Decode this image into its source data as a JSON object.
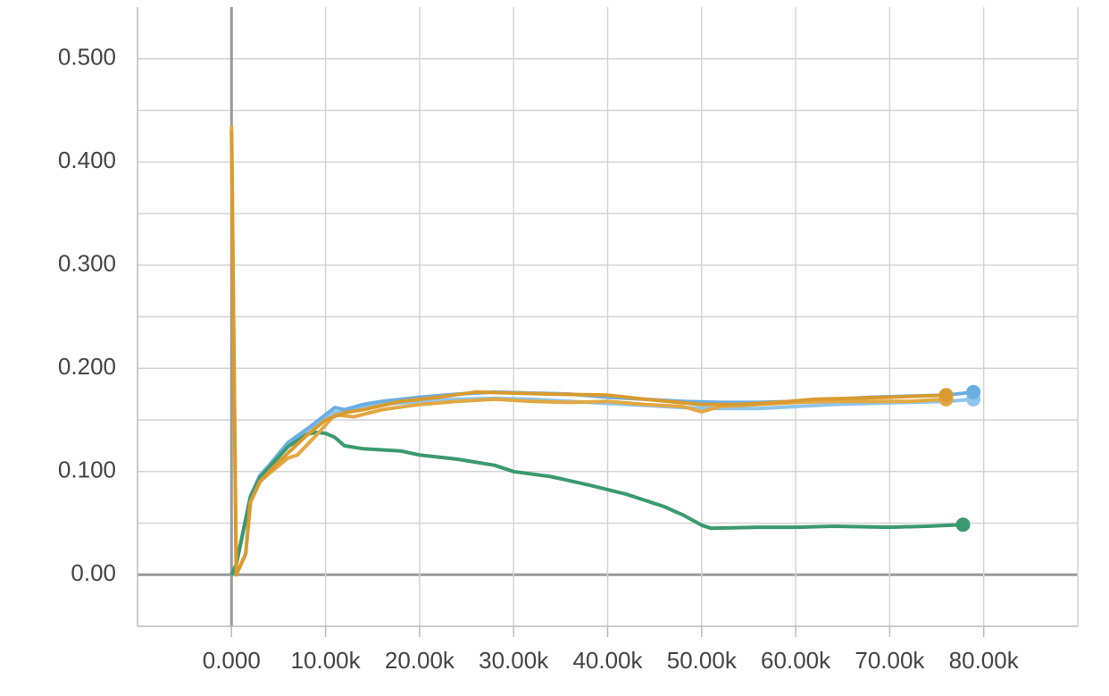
{
  "chart_data": {
    "type": "line",
    "xlim": [
      -10000,
      90000
    ],
    "ylim": [
      -0.05,
      0.55
    ],
    "xticks": [
      {
        "value": 0,
        "label": "0.000"
      },
      {
        "value": 10000,
        "label": "10.00k"
      },
      {
        "value": 20000,
        "label": "20.00k"
      },
      {
        "value": 30000,
        "label": "30.00k"
      },
      {
        "value": 40000,
        "label": "40.00k"
      },
      {
        "value": 50000,
        "label": "50.00k"
      },
      {
        "value": 60000,
        "label": "60.00k"
      },
      {
        "value": 70000,
        "label": "70.00k"
      },
      {
        "value": 80000,
        "label": "80.00k"
      }
    ],
    "yticks": [
      {
        "value": 0,
        "label": "0.00"
      },
      {
        "value": 0.1,
        "label": "0.100"
      },
      {
        "value": 0.2,
        "label": "0.200"
      },
      {
        "value": 0.3,
        "label": "0.300"
      },
      {
        "value": 0.4,
        "label": "0.400"
      },
      {
        "value": 0.5,
        "label": "0.500"
      }
    ],
    "y_minor_grid": [
      0.05,
      0.15,
      0.25,
      0.35,
      0.45
    ],
    "grid": true,
    "series": [
      {
        "color": "#8ec5ec",
        "x": [
          0,
          500,
          2000,
          3000,
          4000,
          6000,
          8000,
          10000,
          11000,
          12000,
          14000,
          16000,
          20000,
          24000,
          28000,
          32000,
          36000,
          40000,
          44000,
          48000,
          52000,
          56000,
          60000,
          64000,
          68000,
          72000,
          76000,
          78900
        ],
        "values": [
          0,
          0.01,
          0.074,
          0.093,
          0.104,
          0.125,
          0.138,
          0.152,
          0.158,
          0.157,
          0.162,
          0.165,
          0.168,
          0.17,
          0.171,
          0.17,
          0.168,
          0.166,
          0.164,
          0.162,
          0.161,
          0.161,
          0.163,
          0.165,
          0.166,
          0.167,
          0.168,
          0.17
        ]
      },
      {
        "color": "#6aaee3",
        "x": [
          0,
          500,
          2000,
          3000,
          4000,
          6000,
          8000,
          10000,
          11000,
          12000,
          14000,
          16000,
          20000,
          24000,
          28000,
          32000,
          36000,
          40000,
          44000,
          48000,
          52000,
          56000,
          60000,
          64000,
          68000,
          72000,
          76000,
          78900
        ],
        "values": [
          0,
          0.01,
          0.076,
          0.096,
          0.106,
          0.128,
          0.141,
          0.155,
          0.162,
          0.16,
          0.165,
          0.168,
          0.172,
          0.175,
          0.177,
          0.176,
          0.175,
          0.172,
          0.17,
          0.168,
          0.167,
          0.167,
          0.168,
          0.17,
          0.172,
          0.173,
          0.174,
          0.177
        ]
      },
      {
        "color": "#3a9a6e",
        "x": [
          0,
          500,
          2000,
          3000,
          4000,
          6000,
          8000,
          9000,
          10000,
          11000,
          12000,
          14000,
          18000,
          20000,
          24000,
          28000,
          30000,
          34000,
          38000,
          42000,
          46000,
          48000,
          50000,
          51000,
          56000,
          60000,
          64000,
          70000,
          74000,
          77800
        ],
        "values": [
          0,
          0.01,
          0.075,
          0.094,
          0.104,
          0.124,
          0.136,
          0.138,
          0.137,
          0.133,
          0.125,
          0.122,
          0.12,
          0.116,
          0.112,
          0.106,
          0.1,
          0.095,
          0.087,
          0.078,
          0.066,
          0.058,
          0.048,
          0.045,
          0.046,
          0.046,
          0.047,
          0.046,
          0.047,
          0.0485
        ]
      },
      {
        "color": "#e2a843",
        "x": [
          0,
          500,
          1500,
          2000,
          3000,
          4000,
          6000,
          7000,
          9000,
          11000,
          13000,
          16000,
          20000,
          24000,
          28000,
          32000,
          36000,
          40000,
          44000,
          48000,
          50000,
          52000,
          56000,
          60000,
          64000,
          68000,
          72000,
          76000
        ],
        "values": [
          0.435,
          0,
          0.02,
          0.07,
          0.09,
          0.098,
          0.113,
          0.116,
          0.135,
          0.155,
          0.153,
          0.16,
          0.165,
          0.168,
          0.17,
          0.168,
          0.167,
          0.168,
          0.165,
          0.163,
          0.158,
          0.163,
          0.165,
          0.167,
          0.168,
          0.168,
          0.168,
          0.17
        ]
      },
      {
        "color": "#d99b30",
        "x": [
          0,
          500,
          1500,
          2000,
          3000,
          4000,
          6000,
          8000,
          10000,
          12000,
          14000,
          18000,
          22000,
          26000,
          30000,
          34000,
          40000,
          44000,
          50000,
          54000,
          58000,
          62000,
          66000,
          70000,
          76000
        ],
        "values": [
          0.43,
          0,
          0.02,
          0.07,
          0.09,
          0.1,
          0.118,
          0.135,
          0.15,
          0.157,
          0.16,
          0.168,
          0.172,
          0.177,
          0.176,
          0.175,
          0.174,
          0.17,
          0.165,
          0.165,
          0.167,
          0.17,
          0.171,
          0.172,
          0.174
        ]
      }
    ]
  }
}
